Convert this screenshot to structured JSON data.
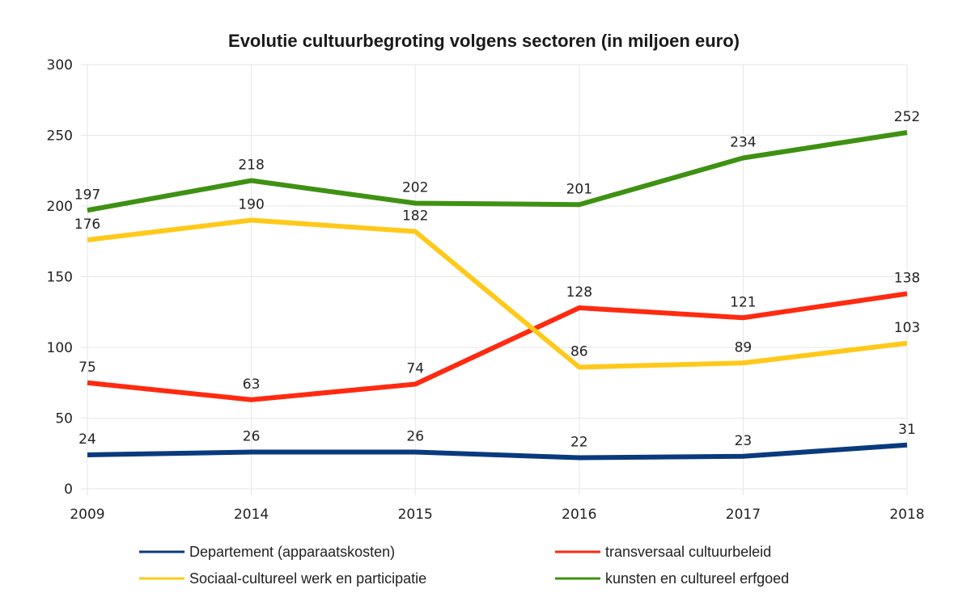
{
  "chart_data": {
    "type": "line",
    "title": "Evolutie cultuurbegroting volgens sectoren (in miljoen euro)",
    "xlabel": "",
    "ylabel": "",
    "categories": [
      "2009",
      "2014",
      "2015",
      "2016",
      "2017",
      "2018"
    ],
    "ylim": [
      0,
      300
    ],
    "yticks": [
      0,
      50,
      100,
      150,
      200,
      250,
      300
    ],
    "grid": true,
    "legend_position": "bottom",
    "data_labels": true,
    "series": [
      {
        "name": "Departement (apparaatskosten)",
        "color": "#0a3a7e",
        "values": [
          24,
          26,
          26,
          22,
          23,
          31
        ]
      },
      {
        "name": "transversaal cultuurbeleid",
        "color": "#ff2a10",
        "values": [
          75,
          63,
          74,
          128,
          121,
          138
        ]
      },
      {
        "name": "Sociaal-cultureel werk en participatie",
        "color": "#ffc91a",
        "values": [
          176,
          190,
          182,
          86,
          89,
          103
        ]
      },
      {
        "name": "kunsten en cultureel erfgoed",
        "color": "#3e9112",
        "values": [
          197,
          218,
          202,
          201,
          234,
          252
        ]
      }
    ]
  }
}
